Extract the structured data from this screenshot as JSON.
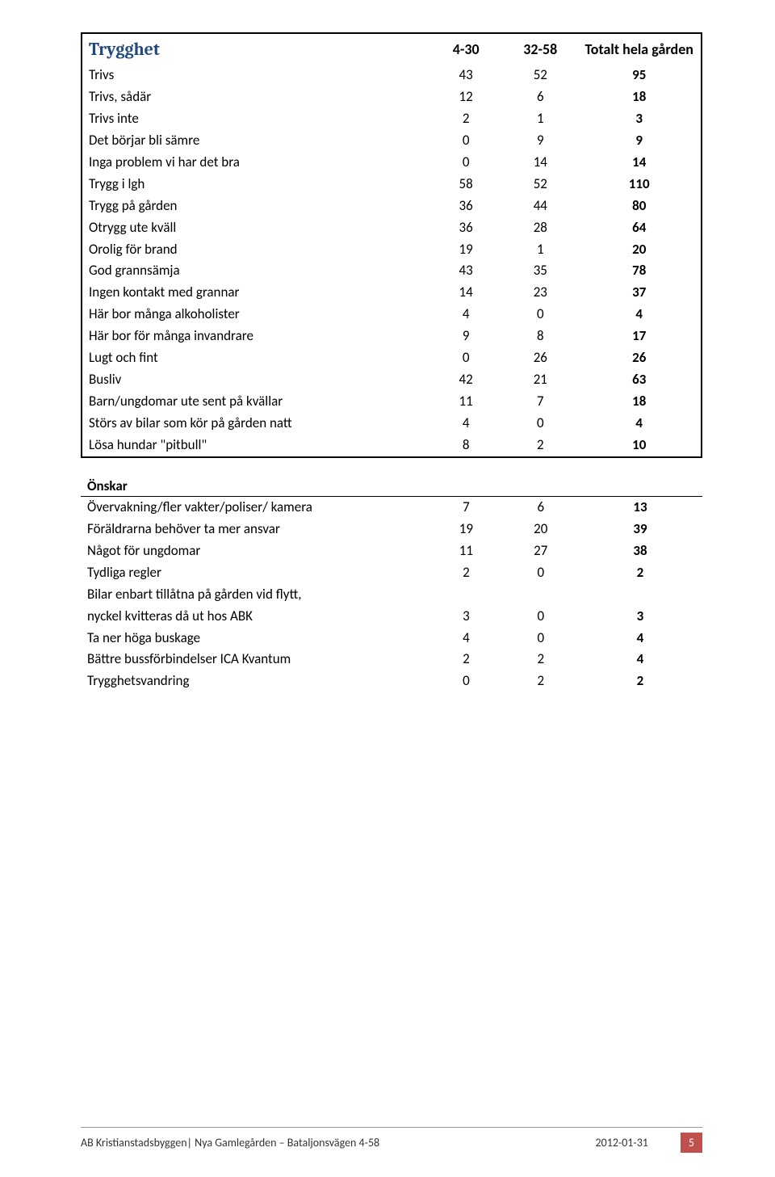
{
  "table1": {
    "headers": {
      "title": "Trygghet",
      "col_a": "4-30",
      "col_b": "32-58",
      "col_total": "Totalt hela gården"
    },
    "rows": [
      {
        "label": "Trivs",
        "a": "43",
        "b": "52",
        "total": "95"
      },
      {
        "label": "Trivs, sådär",
        "a": "12",
        "b": "6",
        "total": "18"
      },
      {
        "label": "Trivs inte",
        "a": "2",
        "b": "1",
        "total": "3"
      },
      {
        "label": "Det börjar bli sämre",
        "a": "0",
        "b": "9",
        "total": "9"
      },
      {
        "label": "Inga problem vi har det bra",
        "a": "0",
        "b": "14",
        "total": "14"
      },
      {
        "label": "Trygg i lgh",
        "a": "58",
        "b": "52",
        "total": "110"
      },
      {
        "label": "Trygg på gården",
        "a": "36",
        "b": "44",
        "total": "80"
      },
      {
        "label": "Otrygg ute kväll",
        "a": "36",
        "b": "28",
        "total": "64"
      },
      {
        "label": "Orolig för brand",
        "a": "19",
        "b": "1",
        "total": "20"
      },
      {
        "label": "God grannsämja",
        "a": "43",
        "b": "35",
        "total": "78"
      },
      {
        "label": "Ingen kontakt med grannar",
        "a": "14",
        "b": "23",
        "total": "37"
      },
      {
        "label": "Här bor många alkoholister",
        "a": "4",
        "b": "0",
        "total": "4"
      },
      {
        "label": "Här bor för många invandrare",
        "a": "9",
        "b": "8",
        "total": "17"
      },
      {
        "label": "Lugt och fint",
        "a": "0",
        "b": "26",
        "total": "26"
      },
      {
        "label": "Busliv",
        "a": "42",
        "b": "21",
        "total": "63"
      },
      {
        "label": "Barn/ungdomar ute sent på kvällar",
        "a": "11",
        "b": "7",
        "total": "18"
      },
      {
        "label": "Störs av bilar som kör på gården natt",
        "a": "4",
        "b": "0",
        "total": "4"
      },
      {
        "label": "Lösa hundar \"pitbull\"",
        "a": "8",
        "b": "2",
        "total": "10"
      }
    ]
  },
  "section2": {
    "header": "Önskar",
    "rows": [
      {
        "label": "Övervakning/fler vakter/poliser/ kamera",
        "a": "7",
        "b": "6",
        "total": "13"
      },
      {
        "label": "Föräldrarna behöver ta mer ansvar",
        "a": "19",
        "b": "20",
        "total": "39"
      },
      {
        "label": "Något för ungdomar",
        "a": "11",
        "b": "27",
        "total": "38"
      },
      {
        "label": "Tydliga regler",
        "a": "2",
        "b": "0",
        "total": "2"
      },
      {
        "label": "Bilar enbart tillåtna på gården vid flytt,",
        "a": "",
        "b": "",
        "total": ""
      },
      {
        "label": "nyckel kvitteras då ut hos ABK",
        "a": "3",
        "b": "0",
        "total": "3"
      },
      {
        "label": "Ta ner höga buskage",
        "a": "4",
        "b": "0",
        "total": "4"
      },
      {
        "label": "Bättre bussförbindelser ICA Kvantum",
        "a": "2",
        "b": "2",
        "total": "4"
      },
      {
        "label": "Trygghetsvandring",
        "a": "0",
        "b": "2",
        "total": "2"
      }
    ]
  },
  "footer": {
    "text": "AB Kristianstadsbyggen| Nya Gamlegården – Bataljonsvägen 4-58",
    "date": "2012-01-31",
    "page": "5"
  },
  "colors": {
    "heading": "#1f497d",
    "page_badge_bg": "#c0504d",
    "page_badge_fg": "#ffffff",
    "border": "#000000"
  }
}
